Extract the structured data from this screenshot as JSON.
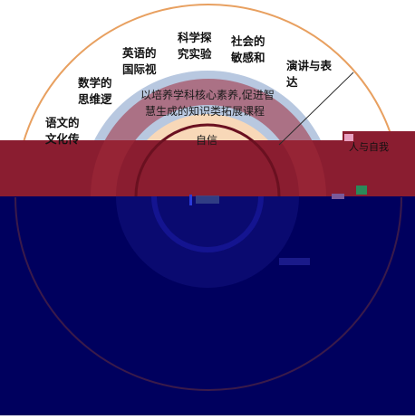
{
  "outer_labels": [
    {
      "lines": [
        "语文的",
        "文化传"
      ]
    },
    {
      "lines": [
        "数学的",
        "思维逻"
      ]
    },
    {
      "lines": [
        "英语的",
        "国际视"
      ]
    },
    {
      "lines": [
        "科学探",
        "究实验"
      ]
    },
    {
      "lines": [
        "社会的",
        "敏感和"
      ]
    },
    {
      "lines": [
        "演讲与表",
        "达"
      ]
    }
  ],
  "middle_ring_text": [
    "以培养学科核心素养,促进智",
    "慧生成的知识类拓展课程"
  ],
  "inner_label": "自信",
  "right_label": "人与自我",
  "colors": {
    "outer_arc": "#e8a060",
    "middle_ring": "#b8c8e0",
    "inner_ring": "#f8d8b8",
    "band": "#8a1d30",
    "dark_navy": "#00005e",
    "deep": "#0a0a70"
  }
}
